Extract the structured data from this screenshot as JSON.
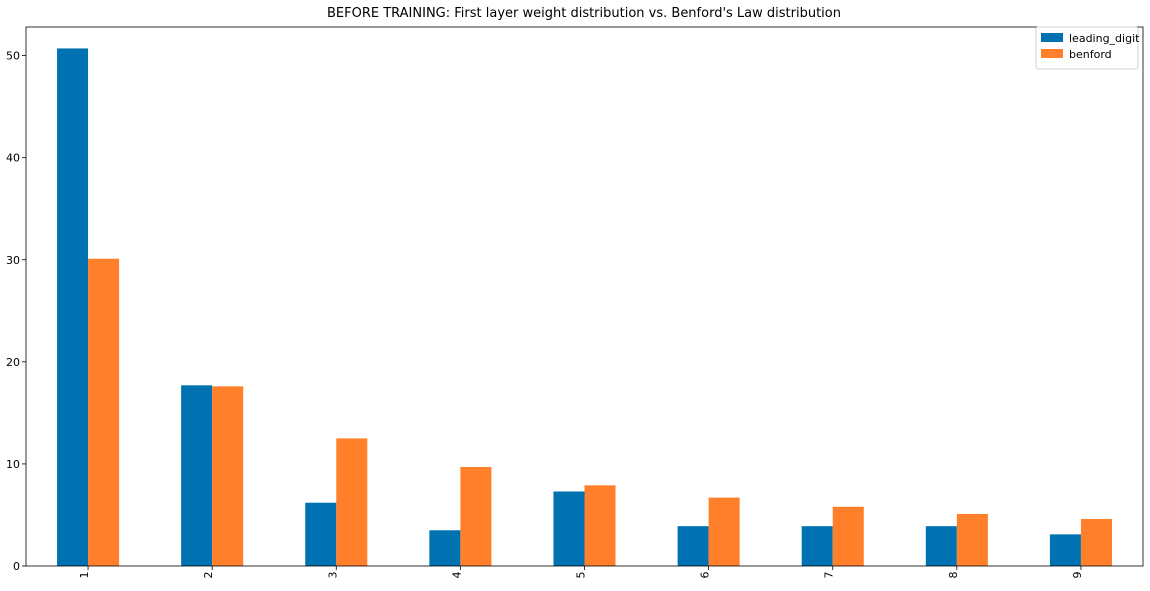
{
  "chart_data": {
    "type": "bar",
    "title": "BEFORE TRAINING: First layer weight distribution vs. Benford's Law distribution",
    "xlabel": "",
    "ylabel": "",
    "categories": [
      "1",
      "2",
      "3",
      "4",
      "5",
      "6",
      "7",
      "8",
      "9"
    ],
    "series": [
      {
        "name": "leading_digit",
        "color": "#0072b2",
        "values": [
          50.7,
          17.7,
          6.2,
          3.5,
          7.3,
          3.9,
          3.9,
          3.9,
          3.1
        ]
      },
      {
        "name": "benford",
        "color": "#ff7f2a",
        "values": [
          30.1,
          17.6,
          12.5,
          9.7,
          7.9,
          6.7,
          5.8,
          5.1,
          4.6
        ]
      }
    ],
    "ylim": [
      0,
      52.8
    ],
    "yticks": [
      0,
      10,
      20,
      30,
      40,
      50
    ],
    "grid": false,
    "legend_position": "top-right",
    "xtick_rotation": "vertical"
  }
}
